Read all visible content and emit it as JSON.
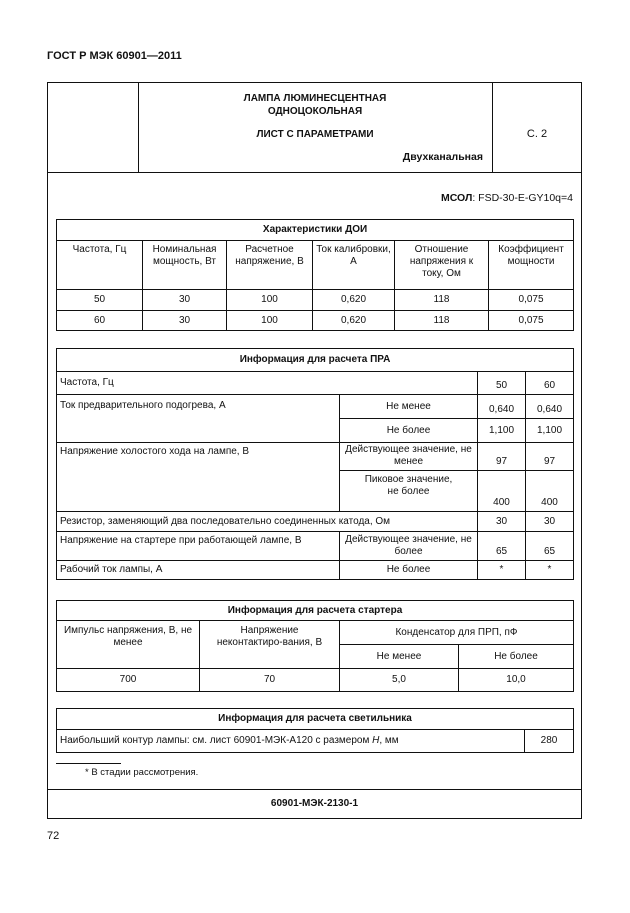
{
  "running_header": "ГОСТ Р МЭК 60901—2011",
  "sheet_header": {
    "title_line1": "ЛАМПА ЛЮМИНЕСЦЕНТНАЯ",
    "title_line2": "ОДНОЦОКОЛЬНАЯ",
    "subtitle": "ЛИСТ С ПАРАМЕТРАМИ",
    "type": "Двухканальная",
    "page_ref": "С. 2"
  },
  "msol": {
    "label": "МСОЛ",
    "value": ": FSD-30-E-GY10q=4"
  },
  "doi_table": {
    "title": "Характеристики ДОИ",
    "headers": [
      "Частота, Гц",
      "Номинальная мощность, Вт",
      "Расчетное напряжение, В",
      "Ток калибровки, А",
      "Отношение напряжения к току, Ом",
      "Коэффициент мощности"
    ],
    "rows": [
      [
        "50",
        "30",
        "100",
        "0,620",
        "118",
        "0,075"
      ],
      [
        "60",
        "30",
        "100",
        "0,620",
        "118",
        "0,075"
      ]
    ]
  },
  "pra_table": {
    "title": "Информация для расчета ПРА",
    "rows": [
      {
        "param": "Частота, Гц",
        "cond": "",
        "v50": "50",
        "v60": "60"
      },
      {
        "param": "Ток предварительного подогрева, А",
        "cond": "Не менее",
        "v50": "0,640",
        "v60": "0,640"
      },
      {
        "param": "",
        "cond": "Не более",
        "v50": "1,100",
        "v60": "1,100"
      },
      {
        "param": "Напряжение холостого хода на лампе, В",
        "cond": "Действующее значение, не менее",
        "v50": "97",
        "v60": "97"
      },
      {
        "param": "",
        "cond": "Пиковое значение, не более",
        "v50": "400",
        "v60": "400"
      },
      {
        "param": "Резистор, заменяющий два последовательно соединенных катода, Ом",
        "cond": "",
        "v50": "30",
        "v60": "30"
      },
      {
        "param": "Напряжение на стартере при работающей лампе, В",
        "cond": "Действующее значение, не более",
        "v50": "65",
        "v60": "65"
      },
      {
        "param": "Рабочий ток лампы, А",
        "cond": "Не более",
        "v50": "*",
        "v60": "*"
      }
    ]
  },
  "starter_table": {
    "title": "Информация для расчета стартера",
    "headers": [
      "Импульс напряжения, В, не менее",
      "Напряжение неконтактиро-вания, В",
      "Конденсатор для ПРП, пФ"
    ],
    "subheaders": [
      "Не менее",
      "Не более"
    ],
    "row": [
      "700",
      "70",
      "5,0",
      "10,0"
    ]
  },
  "luminaire_table": {
    "title": "Информация для расчета светильника",
    "row_label_prefix": "Наибольший контур лампы: см. лист 60901-МЭК-А120 с размером ",
    "row_label_italic": "H",
    "row_label_suffix": ", мм",
    "value": "280"
  },
  "footnote": "* В стадии рассмотрения.",
  "sheet_code": "60901-МЭК-2130-1",
  "page_number": "72"
}
